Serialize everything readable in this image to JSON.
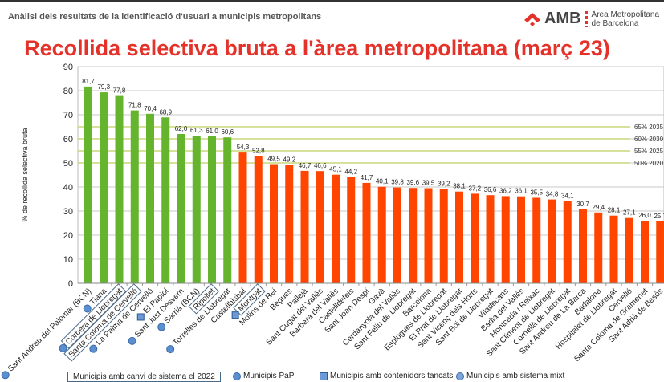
{
  "header": {
    "text": "Anàlisi dels resultats de la identificació d'usuari a municipis metropolitans",
    "logo_amb": "AMB",
    "logo_sub1": "Àrea Metropolitana",
    "logo_sub2": "de Barcelona"
  },
  "legend": {
    "changed": "Municipis amb canvi de sistema el 2022",
    "pap": "Municipis PaP",
    "closed": "Municipis amb contenidors tancats",
    "mixt": "Municipis amb sistema mixt"
  },
  "colors": {
    "green": "#66b32e",
    "orange": "#ff4500",
    "target": "#c9d77a",
    "title": "#e4322b"
  },
  "chart_data": {
    "type": "bar",
    "title": "Recollida selectiva bruta a l'àrea metropolitana (març 23)",
    "ylabel": "% de recollida selectiva bruta",
    "ylim": [
      0,
      90
    ],
    "yticks": [
      0,
      10,
      20,
      30,
      40,
      50,
      60,
      70,
      80,
      90
    ],
    "targets": [
      {
        "value": 65,
        "label": "65% 2035"
      },
      {
        "value": 60,
        "label": "60% 2030"
      },
      {
        "value": 55,
        "label": "55% 2025"
      },
      {
        "value": 50,
        "label": "50% 2020"
      }
    ],
    "bars": [
      {
        "name": "Sant Andreu del Palomar (BCN)",
        "value": 81.7,
        "label": "81,7",
        "group": "green",
        "marker": "pap"
      },
      {
        "name": "Tiana",
        "value": 79.3,
        "label": "79,3",
        "group": "green",
        "marker": "pap"
      },
      {
        "name": "Corbera de Llobregat",
        "value": 77.8,
        "label": "77,8",
        "group": "green",
        "marker": "pap",
        "boxed": true
      },
      {
        "name": "Santa Coloma de Cervelló",
        "value": 71.8,
        "label": "71,8",
        "group": "green",
        "boxed": true
      },
      {
        "name": "La Palma de Cervelló",
        "value": 70.4,
        "label": "70,4",
        "group": "green",
        "marker": "pap"
      },
      {
        "name": "El Papiol",
        "value": 68.9,
        "label": "68,9",
        "group": "green",
        "marker": "closed"
      },
      {
        "name": "Sant Just Desvern",
        "value": 62.0,
        "label": "62,0",
        "group": "green",
        "marker": "pap"
      },
      {
        "name": "Sarrià (BCN)",
        "value": 61.3,
        "label": "61,3",
        "group": "green",
        "marker": "pap"
      },
      {
        "name": "Ripollet",
        "value": 61.0,
        "label": "61,0",
        "group": "green",
        "boxed": true
      },
      {
        "name": "Torrelles de Llobregat",
        "value": 60.6,
        "label": "60,6",
        "group": "green",
        "marker": "pap"
      },
      {
        "name": "Castellbisbal",
        "value": 54.3,
        "label": "54,3",
        "group": "orange"
      },
      {
        "name": "Montgat",
        "value": 52.8,
        "label": "52,8",
        "group": "orange",
        "marker": "closed",
        "boxed": true
      },
      {
        "name": "Molins de Rei",
        "value": 49.5,
        "label": "49,5",
        "group": "orange"
      },
      {
        "name": "Begues",
        "value": 49.2,
        "label": "49,2",
        "group": "orange"
      },
      {
        "name": "Pallejà",
        "value": 46.7,
        "label": "46,7",
        "group": "orange"
      },
      {
        "name": "Sant Cugat del Vallès",
        "value": 46.6,
        "label": "46,6",
        "group": "orange"
      },
      {
        "name": "Barberà del Vallès",
        "value": 45.1,
        "label": "45,1",
        "group": "orange"
      },
      {
        "name": "Castelldefels",
        "value": 44.2,
        "label": "44,2",
        "group": "orange"
      },
      {
        "name": "Sant Joan Despí",
        "value": 41.7,
        "label": "41,7",
        "group": "orange"
      },
      {
        "name": "Gavà",
        "value": 40.1,
        "label": "40,1",
        "group": "orange"
      },
      {
        "name": "Cerdanyola del Vallès",
        "value": 39.8,
        "label": "39,8",
        "group": "orange"
      },
      {
        "name": "Sant Feliu de Llobregat",
        "value": 39.6,
        "label": "39,6",
        "group": "orange"
      },
      {
        "name": "Barcelona",
        "value": 39.5,
        "label": "39,5",
        "group": "orange"
      },
      {
        "name": "Esplugues de Llobregat",
        "value": 39.2,
        "label": "39,2",
        "group": "orange"
      },
      {
        "name": "El Prat de Llobregat",
        "value": 38.1,
        "label": "38,1",
        "group": "orange"
      },
      {
        "name": "Sant Vicenç dels Horts",
        "value": 37.2,
        "label": "37,2",
        "group": "orange"
      },
      {
        "name": "Sant Boi de Llobregat",
        "value": 36.6,
        "label": "36,6",
        "group": "orange"
      },
      {
        "name": "Viladecans",
        "value": 36.2,
        "label": "36,2",
        "group": "orange"
      },
      {
        "name": "Badia del Vallès",
        "value": 36.1,
        "label": "36,1",
        "group": "orange"
      },
      {
        "name": "Montcada i Reixac",
        "value": 35.5,
        "label": "35,5",
        "group": "orange"
      },
      {
        "name": "Sant Climent de Llobregat",
        "value": 34.8,
        "label": "34,8",
        "group": "orange"
      },
      {
        "name": "Cornellà de Llobregat",
        "value": 34.1,
        "label": "34,1",
        "group": "orange"
      },
      {
        "name": "Sant Andreu de La Barca",
        "value": 30.7,
        "label": "30,7",
        "group": "orange"
      },
      {
        "name": "Badalona",
        "value": 29.4,
        "label": "29,4",
        "group": "orange"
      },
      {
        "name": "Hospitalet de Llobregat",
        "value": 28.1,
        "label": "28,1",
        "group": "orange"
      },
      {
        "name": "Cervelló",
        "value": 27.1,
        "label": "27,1",
        "group": "orange"
      },
      {
        "name": "Santa Coloma de Gramenet",
        "value": 26.0,
        "label": "26,0",
        "group": "orange"
      },
      {
        "name": "Sant Adrià de Besòs",
        "value": 25.7,
        "label": "25,7",
        "group": "orange"
      }
    ]
  }
}
